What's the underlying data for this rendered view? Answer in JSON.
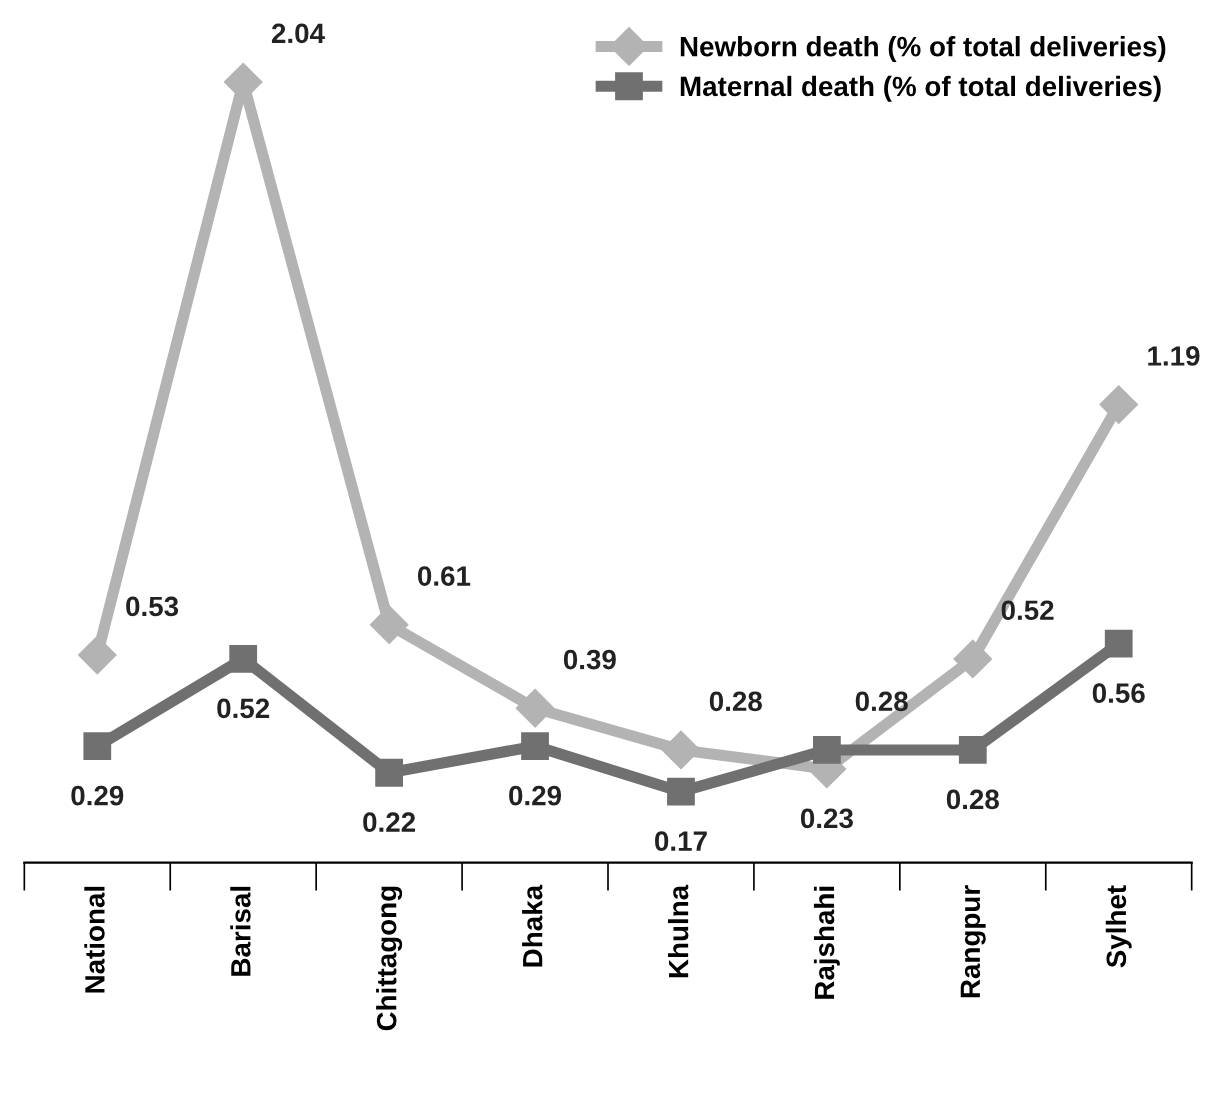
{
  "chart_data": {
    "type": "line",
    "categories": [
      "National",
      "Barisal",
      "Chittagong",
      "Dhaka",
      "Khulna",
      "Rajshahi",
      "Rangpur",
      "Sylhet"
    ],
    "series": [
      {
        "name": "Newborn death (% of total deliveries)",
        "color": "#b3b3b3",
        "marker": "diamond",
        "values": [
          0.53,
          2.04,
          0.61,
          0.39,
          0.28,
          0.23,
          0.52,
          1.19
        ]
      },
      {
        "name": "Maternal death (% of total deliveries)",
        "color": "#707070",
        "marker": "square",
        "values": [
          0.29,
          0.52,
          0.22,
          0.29,
          0.17,
          0.28,
          0.28,
          0.56
        ]
      }
    ],
    "data_labels": true,
    "legend": "top right",
    "grid": false
  }
}
